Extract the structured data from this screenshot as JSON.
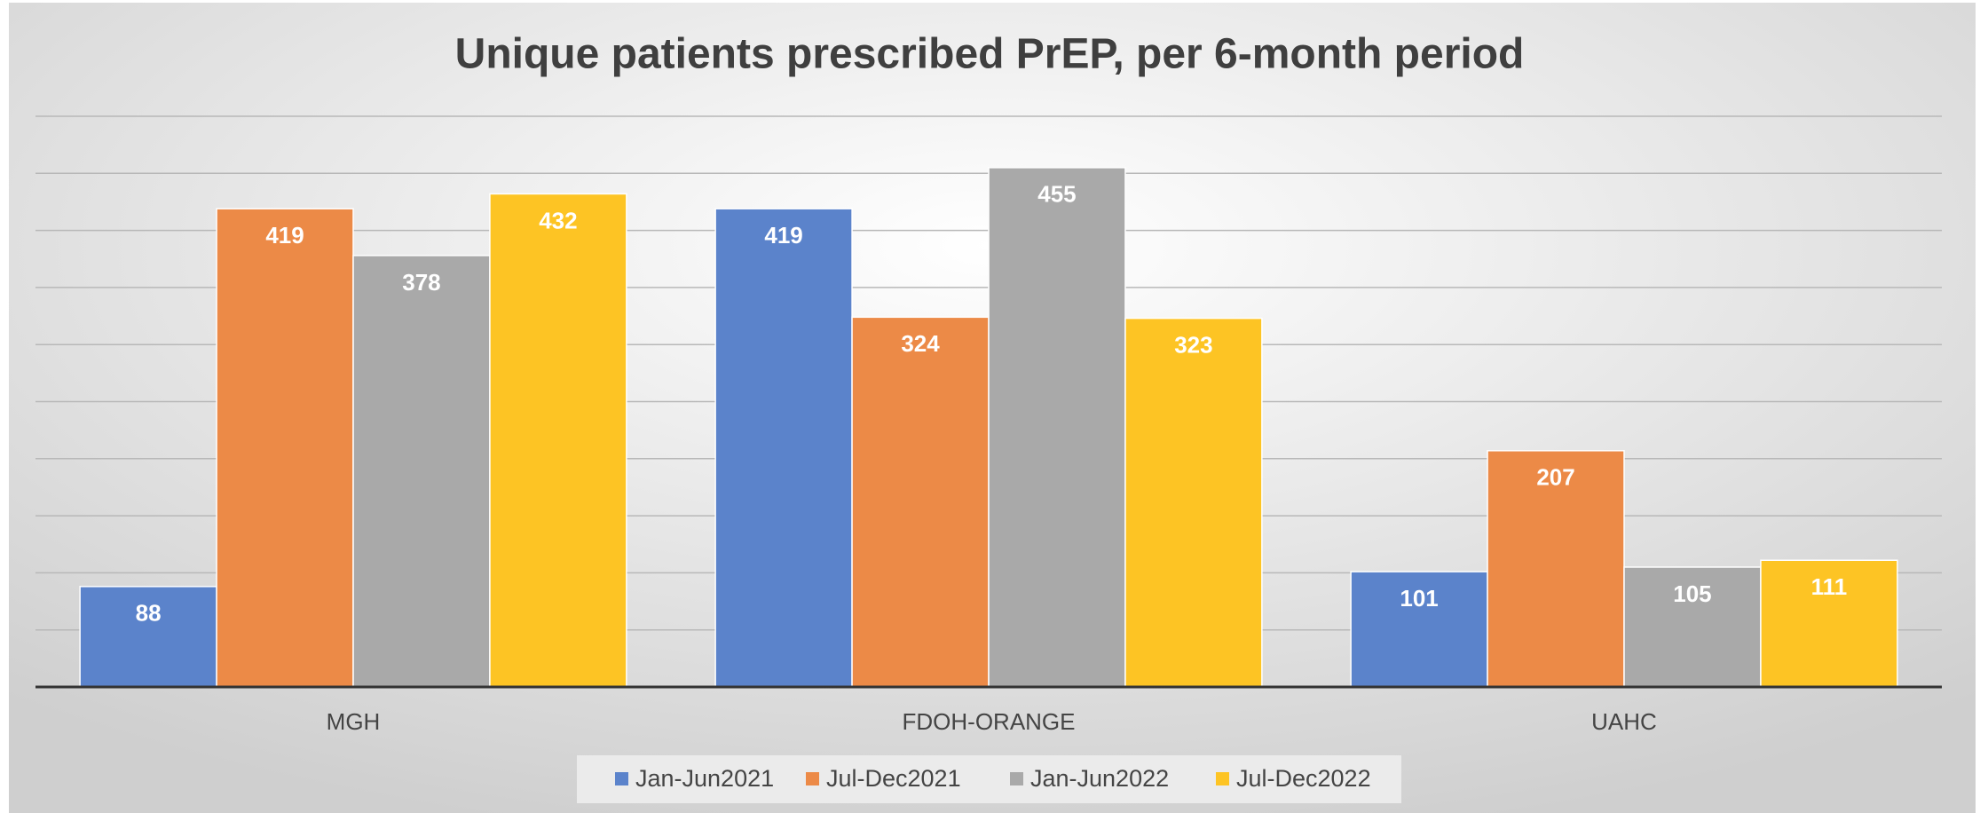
{
  "chart_data": {
    "type": "bar",
    "title": "Unique patients prescribed PrEP, per 6-month period",
    "categories": [
      "MGH",
      "FDOH-ORANGE",
      "UAHC"
    ],
    "series": [
      {
        "name": "Jan-Jun2021",
        "color": "#5b83cb",
        "values": [
          88,
          419,
          101
        ]
      },
      {
        "name": "Jul-Dec2021",
        "color": "#ec8a47",
        "values": [
          419,
          324,
          207
        ]
      },
      {
        "name": "Jan-Jun2022",
        "color": "#a9a9a9",
        "values": [
          378,
          455,
          105
        ]
      },
      {
        "name": "Jul-Dec2022",
        "color": "#fdc424",
        "values": [
          432,
          323,
          111
        ]
      }
    ],
    "ylim": [
      0,
      500
    ],
    "yticks": [
      0,
      50,
      100,
      150,
      200,
      250,
      300,
      350,
      400,
      450,
      500
    ],
    "grid": true,
    "legend": "bottom"
  }
}
